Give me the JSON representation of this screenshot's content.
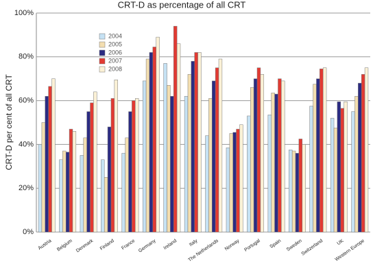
{
  "chart_data": {
    "type": "bar",
    "title": "CRT-D as percentage of all CRT",
    "y_label": "CRT-D per cent of all CRT",
    "categories": [
      "Austria",
      "Belgium",
      "Denmark",
      "Finland",
      "France",
      "Germany",
      "Ireland",
      "Italy",
      "The Netherlands",
      "Norway",
      "Portugal",
      "Spain",
      "Sweden",
      "Switzerland",
      "UK",
      "Western Europe"
    ],
    "series": [
      {
        "name": "2004",
        "color": "#c6e2f4",
        "values": [
          40,
          33,
          35,
          33,
          36,
          69,
          77,
          62,
          44,
          38.5,
          53,
          53.5,
          37.5,
          57.5,
          52,
          55
        ]
      },
      {
        "name": "2005",
        "color": "#f3deb0",
        "values": [
          50,
          37,
          43,
          25,
          43,
          79,
          67,
          72,
          61,
          45,
          66,
          63.5,
          37,
          67.5,
          47.5,
          62
        ]
      },
      {
        "name": "2006",
        "color": "#2b2b82",
        "values": [
          62,
          36.5,
          55,
          48,
          55,
          82,
          62,
          78,
          69,
          45.5,
          70,
          63,
          36,
          70,
          59.5,
          68
        ]
      },
      {
        "name": "2007",
        "color": "#e23a32",
        "values": [
          66.5,
          47,
          59,
          61,
          60,
          84.5,
          94,
          82,
          75,
          47,
          75,
          70,
          42.5,
          74.5,
          56.5,
          72
        ]
      },
      {
        "name": "2008",
        "color": "#fbf1d6",
        "values": [
          70,
          46,
          64,
          69.5,
          61,
          89,
          86,
          82,
          79,
          49,
          72,
          69,
          40,
          75,
          59.5,
          75
        ]
      }
    ],
    "ylim": [
      0,
      100
    ],
    "yticks": [
      {
        "value": 0,
        "label": "0%"
      },
      {
        "value": 20,
        "label": "20%"
      },
      {
        "value": 40,
        "label": "40%"
      },
      {
        "value": 60,
        "label": "60%"
      },
      {
        "value": 80,
        "label": "80%"
      },
      {
        "value": 100,
        "label": "100%"
      }
    ],
    "grid": true,
    "legend": "upper-left"
  }
}
